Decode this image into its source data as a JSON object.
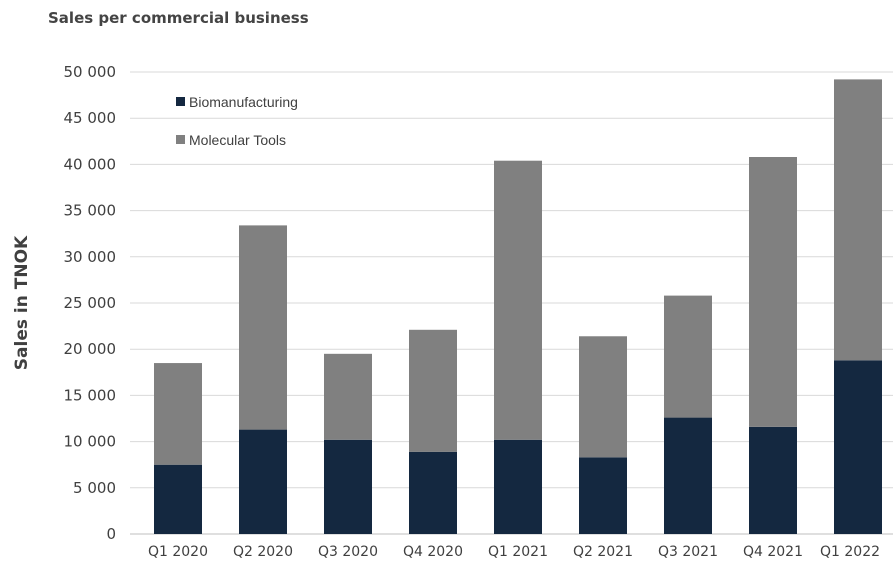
{
  "chart_data": {
    "type": "bar",
    "stacked": true,
    "title": "Sales per commercial business",
    "xlabel": "",
    "ylabel": "Sales in TNOK",
    "ylim": [
      0,
      50000
    ],
    "yticks": [
      "0",
      "5 000",
      "10 000",
      "15 000",
      "20 000",
      "25 000",
      "30 000",
      "35 000",
      "40 000",
      "45 000",
      "50 000"
    ],
    "grid": true,
    "legend_position": "top-left",
    "categories": [
      "Q1 2020",
      "Q2 2020",
      "Q3 2020",
      "Q4 2020",
      "Q1 2021",
      "Q2 2021",
      "Q3 2021",
      "Q4 2021",
      "Q1 2022"
    ],
    "series": [
      {
        "name": "Biomanufacturing",
        "color": "#142840",
        "values": [
          7500,
          11300,
          10200,
          8900,
          10200,
          8300,
          12600,
          11600,
          18800
        ]
      },
      {
        "name": "Molecular Tools",
        "color": "#808080",
        "values": [
          11000,
          22100,
          9300,
          13200,
          30200,
          13100,
          13200,
          29200,
          30400
        ]
      }
    ]
  }
}
